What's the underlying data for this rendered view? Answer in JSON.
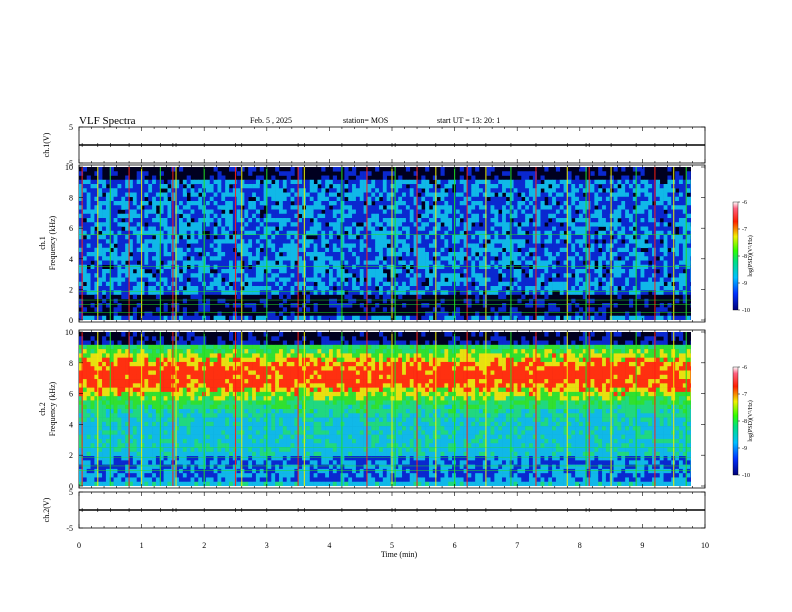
{
  "header": {
    "title": "VLF Spectra",
    "date": "Feb. 5 , 2025",
    "station": "station= MOS",
    "start": "start UT = 13: 20: 1"
  },
  "colors": {
    "background_dark": "#000020",
    "noise_blue": "#0a3cff",
    "cyan": "#18d8e8",
    "green": "#20e020",
    "yellow": "#f0f000",
    "red": "#ff2010",
    "white": "#ffffff"
  },
  "chart_data": [
    {
      "type": "line",
      "panel": "ch1-waveform",
      "ylabel": "ch.1(V)",
      "ylim": [
        -5,
        5
      ],
      "yticks": [
        "5",
        "-5"
      ],
      "x": [
        0,
        10
      ],
      "y": [
        0,
        0
      ],
      "xlim": [
        0,
        10
      ]
    },
    {
      "type": "heatmap",
      "panel": "ch1-spectrogram",
      "ylabel": "ch.1 Frequency (kHz)",
      "ylim": [
        0,
        10
      ],
      "yticks": [
        "0",
        "2",
        "4",
        "6",
        "8",
        "10"
      ],
      "xlim": [
        0,
        9.83
      ],
      "colorbar": {
        "label": "log(PSD)(V²/Hz)",
        "range": [
          -10,
          -6
        ],
        "ticks": [
          "-6",
          "-7",
          "-8",
          "-9",
          "-10"
        ]
      },
      "lines_khz": [
        0.5,
        1.0,
        1.3,
        1.85,
        3.5,
        5.6
      ],
      "sferics_min": [
        0.05,
        0.3,
        0.5,
        0.8,
        1.0,
        1.3,
        1.5,
        1.55,
        2.0,
        2.5,
        2.6,
        3.0,
        3.5,
        3.6,
        4.2,
        4.6,
        5.0,
        5.05,
        5.4,
        5.7,
        6.0,
        6.2,
        6.5,
        6.9,
        7.3,
        7.8,
        8.1,
        8.15,
        8.5,
        8.9,
        9.2,
        9.5,
        9.7
      ]
    },
    {
      "type": "heatmap",
      "panel": "ch2-spectrogram",
      "ylabel": "ch.2 Frequency (kHz)",
      "ylim": [
        0,
        10
      ],
      "yticks": [
        "0",
        "2",
        "4",
        "6",
        "8",
        "10"
      ],
      "xlim": [
        0,
        9.83
      ],
      "colorbar": {
        "label": "log(PSD)(V²/Hz)",
        "range": [
          -10,
          -6
        ],
        "ticks": [
          "-6",
          "-7",
          "-8",
          "-9",
          "-10"
        ]
      },
      "lines_khz": [
        1.0,
        1.3,
        1.85,
        2.5
      ],
      "sferics_min": [
        0.05,
        0.3,
        0.5,
        0.8,
        1.0,
        1.3,
        1.5,
        1.55,
        2.0,
        2.5,
        2.6,
        3.0,
        3.5,
        3.6,
        4.2,
        4.6,
        5.0,
        5.05,
        5.4,
        5.7,
        6.0,
        6.2,
        6.5,
        6.9,
        7.3,
        7.8,
        8.1,
        8.15,
        8.5,
        8.9,
        9.2,
        9.5,
        9.7
      ]
    },
    {
      "type": "line",
      "panel": "ch2-waveform",
      "ylabel": "ch.2(V)",
      "ylim": [
        -5,
        5
      ],
      "yticks": [
        "5",
        "-5"
      ],
      "x": [
        0,
        10
      ],
      "y": [
        0,
        0
      ],
      "xlim": [
        0,
        10
      ]
    }
  ],
  "xaxis": {
    "label": "Time  (min)",
    "ticks": [
      "0",
      "1",
      "2",
      "3",
      "4",
      "5",
      "6",
      "7",
      "8",
      "9",
      "10"
    ]
  }
}
